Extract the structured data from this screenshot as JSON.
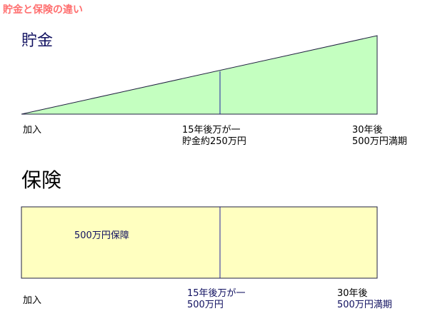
{
  "header": {
    "title": "貯金と保険の違い"
  },
  "savings": {
    "heading": "貯金",
    "labels": {
      "start": "加入",
      "mid": [
        "15年後万が一",
        "貯金約250万円"
      ],
      "end": [
        "30年後",
        "500万円満期"
      ]
    }
  },
  "insurance": {
    "heading": "保険",
    "box_label": "500万円保障",
    "labels": {
      "start": "加入",
      "mid": [
        "15年後万が一",
        "500万円"
      ],
      "end": [
        "30年後",
        "500万円満期"
      ]
    }
  }
}
